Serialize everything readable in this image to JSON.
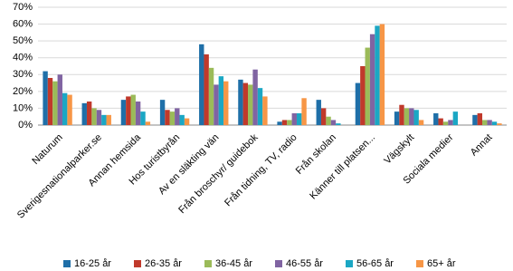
{
  "chart_data": {
    "type": "bar",
    "categories": [
      "Naturum",
      "Sverigesnationalparker.se",
      "Annan hemsida",
      "Hos turistbyrån",
      "Av en släkting vän",
      "Från broschyr/ guidebok",
      "Från tidning, TV, radio",
      "Från skolan",
      "Känner till platsen...",
      "Vägskylt",
      "Sociala medier",
      "Annat"
    ],
    "series": [
      {
        "name": "16-25 år",
        "color": "#1f6fa8",
        "values": [
          32,
          13,
          15,
          15,
          48,
          27,
          2,
          15,
          25,
          8,
          7,
          6
        ]
      },
      {
        "name": "26-35 år",
        "color": "#c0392b",
        "values": [
          28,
          14,
          17,
          9,
          42,
          25,
          3,
          10,
          35,
          12,
          4,
          7
        ]
      },
      {
        "name": "36-45 år",
        "color": "#9bbb59",
        "values": [
          26,
          10,
          18,
          8,
          34,
          24,
          3,
          5,
          46,
          10,
          2,
          3
        ]
      },
      {
        "name": "46-55 år",
        "color": "#8064a2",
        "values": [
          30,
          9,
          14,
          10,
          24,
          33,
          7,
          3,
          54,
          10,
          3,
          3
        ]
      },
      {
        "name": "56-65 år",
        "color": "#1ba7c4",
        "values": [
          19,
          6,
          8,
          6,
          29,
          22,
          7,
          1,
          59,
          9,
          8,
          2
        ]
      },
      {
        "name": "65+ år",
        "color": "#f79646",
        "values": [
          18,
          6,
          2,
          4,
          26,
          17,
          16,
          0,
          60,
          3,
          0,
          1
        ]
      }
    ],
    "ylim": [
      0,
      70
    ],
    "yticks": [
      {
        "value": 0,
        "label": "0%"
      },
      {
        "value": 10,
        "label": "10%"
      },
      {
        "value": 20,
        "label": "20%"
      },
      {
        "value": 30,
        "label": "30%"
      },
      {
        "value": 40,
        "label": "40%"
      },
      {
        "value": 50,
        "label": "50%"
      },
      {
        "value": 60,
        "label": "60%"
      },
      {
        "value": 70,
        "label": "70%"
      }
    ],
    "grid": true,
    "legend": "bottom"
  }
}
